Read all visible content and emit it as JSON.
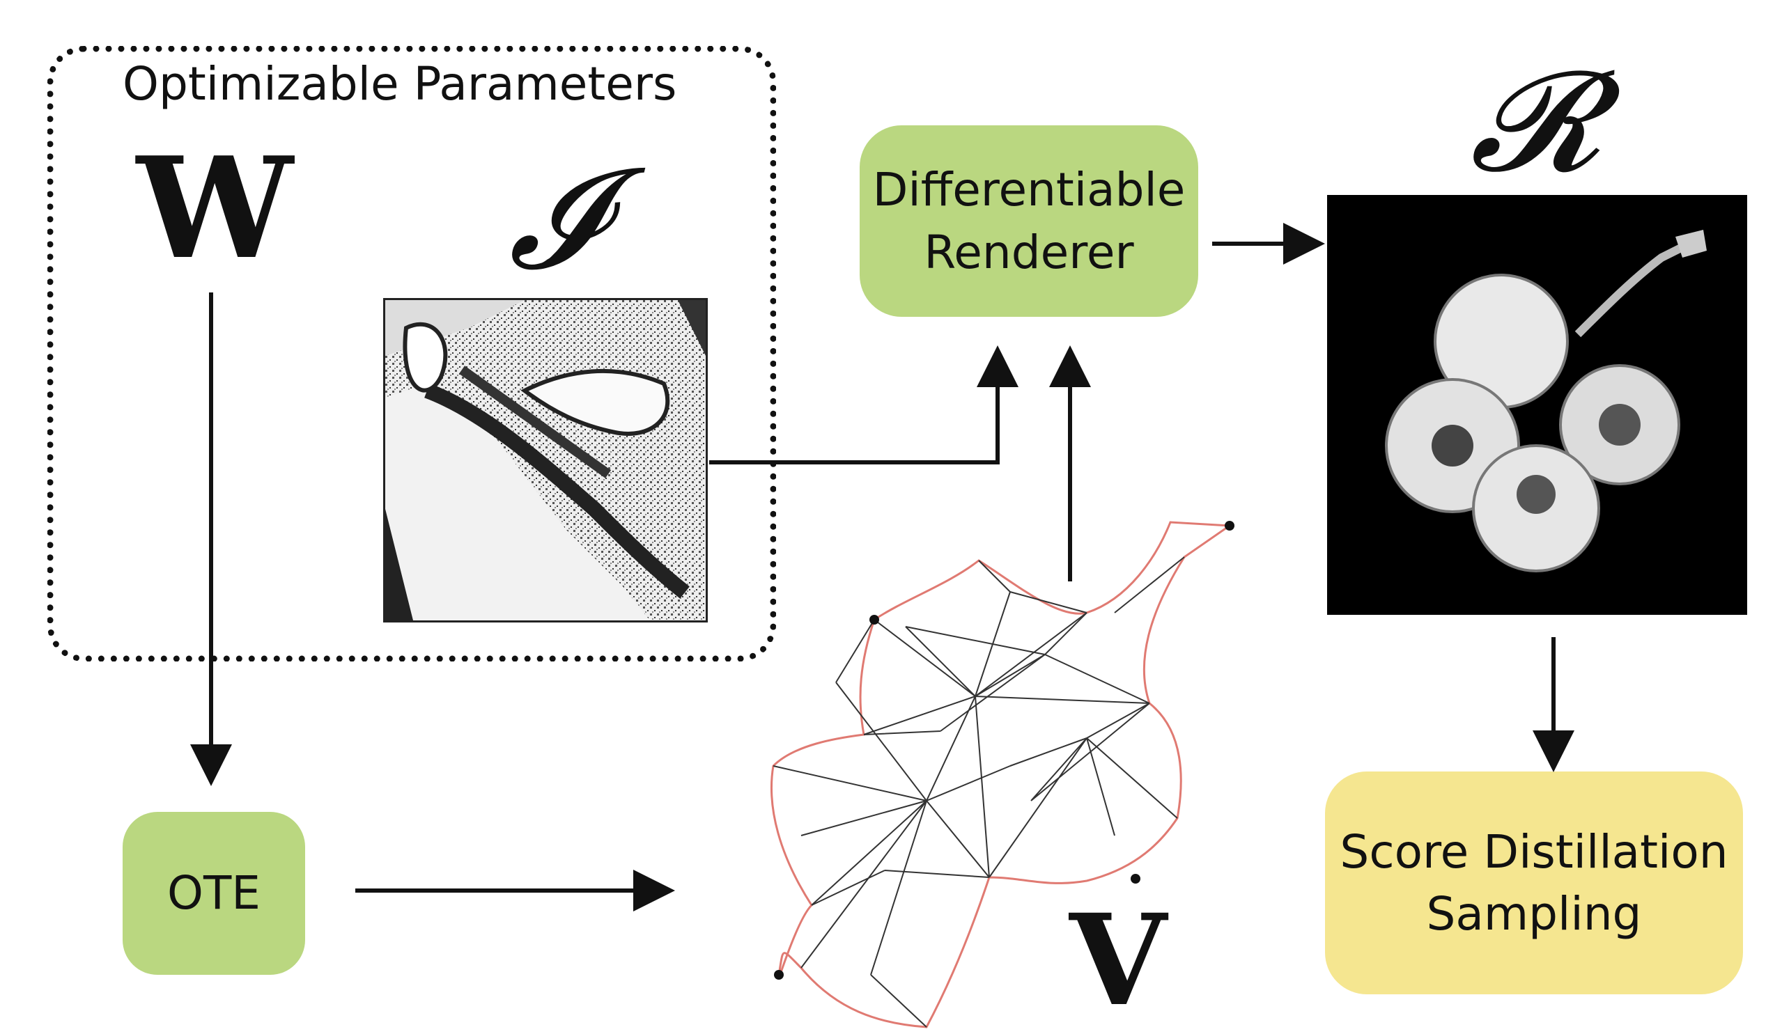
{
  "params_box": {
    "title": "Optimizable Parameters"
  },
  "symbols": {
    "w": "W",
    "i": "𝓘",
    "r": "𝓡",
    "v": "V"
  },
  "nodes": {
    "renderer": {
      "line1": "Differentiable",
      "line2": "Renderer"
    },
    "ote": {
      "label": "OTE"
    },
    "sds": {
      "line1": "Score Distillation",
      "line2": "Sampling"
    }
  },
  "colors": {
    "green_node": "#bad780",
    "yellow_node": "#f5e690",
    "mesh_red": "#e07a72",
    "mesh_teal": "#5fae9a"
  }
}
